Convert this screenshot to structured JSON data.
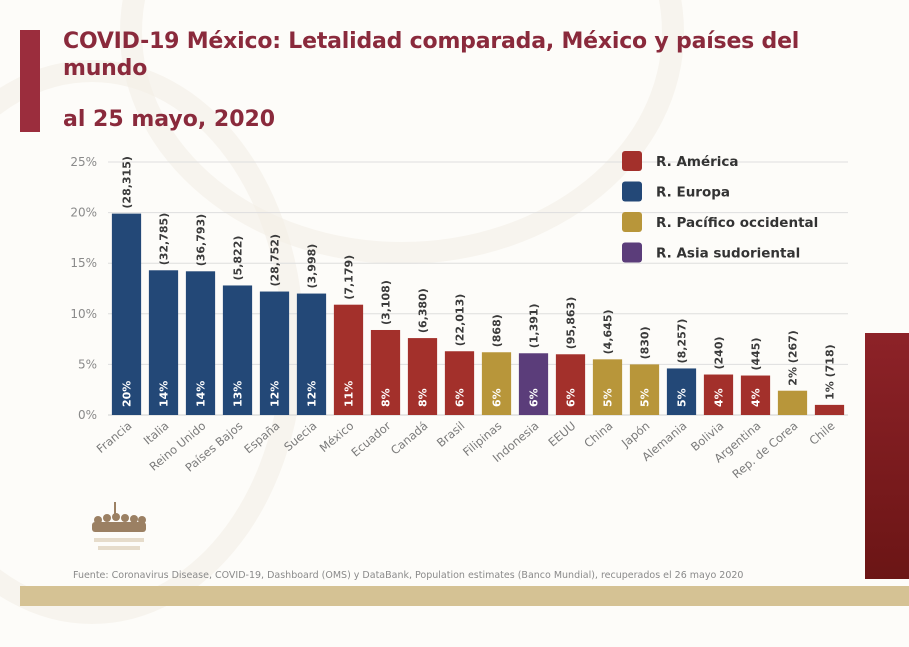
{
  "header": {
    "title": "COVID-19 México: Letalidad comparada, México y países del mundo",
    "subtitle": "al 25 mayo, 2020"
  },
  "footer": {
    "source": "Fuente: Coronavirus Disease, COVID-19, Dashboard (OMS) y DataBank, Population estimates (Banco Mundial), recuperados el 26 mayo 2020"
  },
  "colors": {
    "title": "#8a2a3c",
    "accent": "#9b2d3d",
    "footer_band": "#d5c294",
    "side_panel": "#7d1c1f"
  },
  "chart_data": {
    "type": "bar",
    "title": "COVID-19 México: Letalidad comparada, México y países del mundo",
    "subtitle": "al 25 mayo, 2020",
    "xlabel": "",
    "ylabel": "",
    "ylim": [
      0,
      25
    ],
    "yticks": [
      0,
      5,
      10,
      15,
      20,
      25
    ],
    "ytick_labels": [
      "0%",
      "5%",
      "10%",
      "15%",
      "20%",
      "25%"
    ],
    "grid": true,
    "legend_position": "top-right",
    "regions": [
      {
        "key": "america",
        "name": "R. América",
        "color": "#a3302b"
      },
      {
        "key": "europa",
        "name": "R. Europa",
        "color": "#234877"
      },
      {
        "key": "pacifico",
        "name": "R. Pacífico occidental",
        "color": "#b8963a"
      },
      {
        "key": "asia",
        "name": "R. Asia sudoriental",
        "color": "#5b3d7a"
      }
    ],
    "categories": [
      "Francia",
      "Italia",
      "Reino Unido",
      "Países Bajos",
      "España",
      "Suecia",
      "México",
      "Ecuador",
      "Canadá",
      "Brasil",
      "Filipinas",
      "Indonesia",
      "EEUU",
      "China",
      "Japón",
      "Alemania",
      "Bolivia",
      "Argentina",
      "Rep. de Corea",
      "Chile"
    ],
    "values": [
      19.9,
      14.3,
      14.2,
      12.8,
      12.2,
      12.0,
      10.9,
      8.4,
      7.6,
      6.3,
      6.2,
      6.1,
      6.0,
      5.5,
      5.0,
      4.6,
      4.0,
      3.9,
      2.4,
      1.0
    ],
    "value_labels": [
      "20%",
      "14%",
      "14%",
      "13%",
      "12%",
      "12%",
      "11%",
      "8%",
      "8%",
      "6%",
      "6%",
      "6%",
      "6%",
      "5%",
      "5%",
      "5%",
      "4%",
      "4%",
      "2%",
      "1%"
    ],
    "deaths_labels": [
      "(28,315)",
      "(32,785)",
      "(36,793)",
      "(5,822)",
      "(28,752)",
      "(3,998)",
      "(7,179)",
      "(3,108)",
      "(6,380)",
      "(22,013)",
      "(868)",
      "(1,391)",
      "(95,863)",
      "(4,645)",
      "(830)",
      "(8,257)",
      "(240)",
      "(445)",
      "(267)",
      "(718)"
    ],
    "region": [
      "europa",
      "europa",
      "europa",
      "europa",
      "europa",
      "europa",
      "america",
      "america",
      "america",
      "america",
      "pacifico",
      "asia",
      "america",
      "pacifico",
      "pacifico",
      "europa",
      "america",
      "america",
      "pacifico",
      "america"
    ]
  }
}
